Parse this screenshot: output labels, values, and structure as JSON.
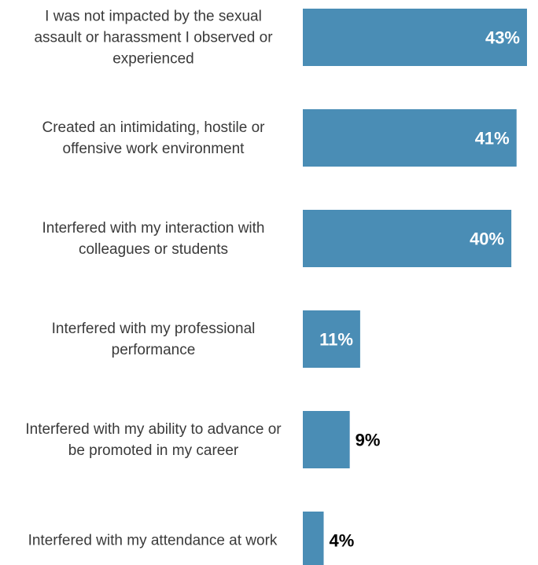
{
  "chart_data": {
    "type": "bar",
    "orientation": "horizontal",
    "categories": [
      [
        "I was not impacted by the sexual",
        "assault or harassment I observed or",
        "experienced"
      ],
      [
        "Created an intimidating, hostile or",
        "offensive work environment"
      ],
      [
        "Interfered with my interaction with",
        "colleagues or students"
      ],
      [
        "Interfered with my professional",
        "performance"
      ],
      [
        "Interfered with my ability to advance or",
        "be promoted in my career"
      ],
      [
        "Interfered with my attendance at work"
      ]
    ],
    "values": [
      43,
      41,
      40,
      11,
      9,
      4
    ],
    "value_labels": [
      "43%",
      "41%",
      "40%",
      "11%",
      "9%",
      "4%"
    ],
    "xlim": [
      0,
      43
    ],
    "grid": false,
    "legend": "none"
  },
  "colors": {
    "bar": "#4a8db5",
    "label_inside": "#ffffff",
    "label_outside": "#000000",
    "category_text": "#3a3a3a"
  }
}
